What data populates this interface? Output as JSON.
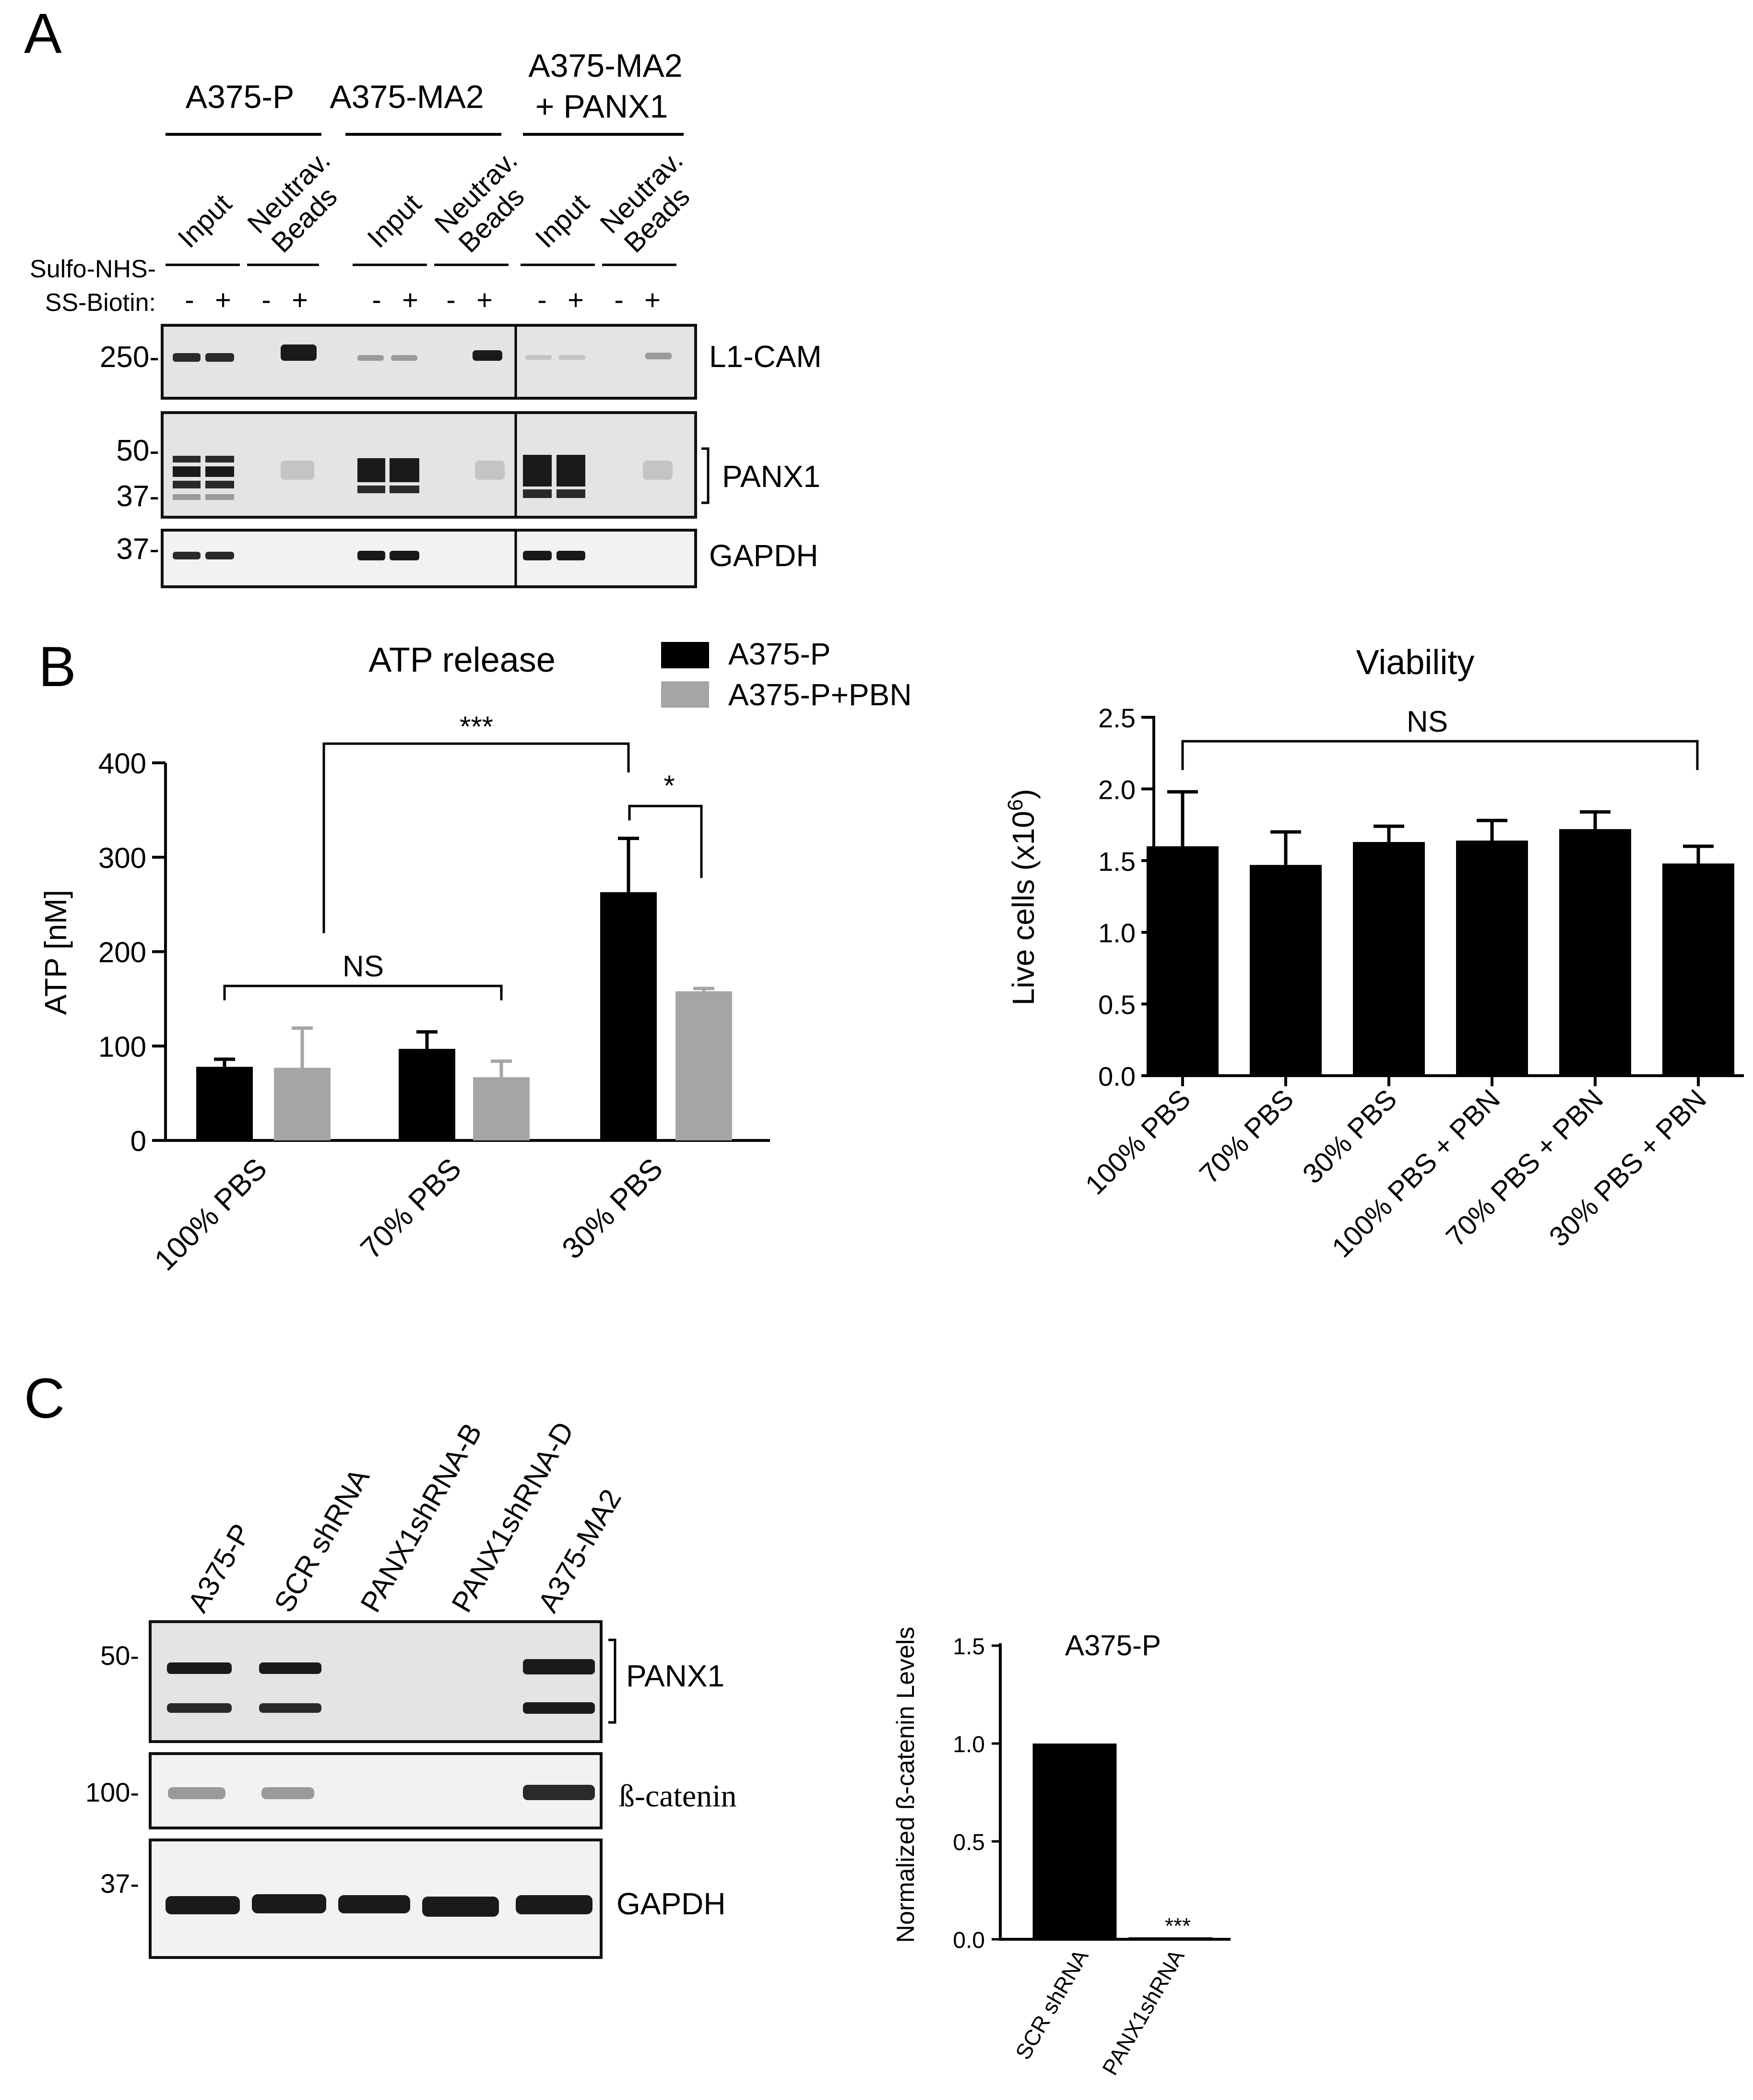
{
  "panel_letters": [
    "A",
    "B",
    "C"
  ],
  "panelA": {
    "groups": [
      "A375-P",
      "A375-MA2",
      "A375-MA2",
      "+ PANX1"
    ],
    "lane_headers": [
      "Input",
      "Neutrav.",
      "Beads"
    ],
    "treatment_label": [
      "Sulfo-NHS-",
      "SS-Biotin:"
    ],
    "signs": [
      "-",
      "+"
    ],
    "markers": [
      "250-",
      "50-",
      "37-",
      "37-"
    ],
    "blots": [
      "L1-CAM",
      "PANX1",
      "GAPDH"
    ]
  },
  "panelB": {
    "legend": [
      "A375-P",
      "A375-P+PBN"
    ],
    "legend_colors": [
      "#000000",
      "#a5a5a5"
    ],
    "atp_sig": [
      "***",
      "*",
      "NS"
    ],
    "viab_sig": "NS",
    "viab_ylabel_prefix": "Live cells (x10",
    "viab_ylabel_exp": "6",
    "viab_ylabel_suffix": ")"
  },
  "panelC": {
    "lanes": [
      "A375-P",
      "SCR shRNA",
      "PANX1shRNA-B",
      "PANX1shRNA-D",
      "A375-MA2"
    ],
    "markers": [
      "50-",
      "100-",
      "37-"
    ],
    "blots": [
      "PANX1",
      "ß-catenin",
      "GAPDH"
    ],
    "bar_sig": "***"
  },
  "chart_data": [
    {
      "type": "bar",
      "title": "ATP release",
      "xlabel": "",
      "ylabel": "ATP [nM]",
      "categories": [
        "100% PBS",
        "70% PBS",
        "30% PBS"
      ],
      "series": [
        {
          "name": "A375-P",
          "values": [
            78,
            97,
            263
          ],
          "errors": [
            8,
            18,
            57
          ]
        },
        {
          "name": "A375-P+PBN",
          "values": [
            77,
            67,
            158
          ],
          "errors": [
            42,
            17,
            3
          ]
        }
      ],
      "ylim": [
        0,
        400
      ],
      "yticks": [
        "0",
        "100",
        "200",
        "300",
        "400"
      ],
      "grid": false
    },
    {
      "type": "bar",
      "title": "Viability",
      "xlabel": "",
      "ylabel": "Live cells (x10^6)",
      "categories": [
        "100% PBS",
        "70% PBS",
        "30% PBS",
        "100% PBS + PBN",
        "70% PBS + PBN",
        "30% PBS + PBN"
      ],
      "values": [
        1.6,
        1.47,
        1.63,
        1.64,
        1.72,
        1.48
      ],
      "errors": [
        0.38,
        0.23,
        0.11,
        0.14,
        0.12,
        0.12
      ],
      "ylim": [
        0,
        2.5
      ],
      "yticks": [
        "0.0",
        "0.5",
        "1.0",
        "1.5",
        "2.0",
        "2.5"
      ],
      "grid": false
    },
    {
      "type": "bar",
      "title": "A375-P",
      "xlabel": "",
      "ylabel": "Normalized ß-catenin Levels",
      "categories": [
        "SCR shRNA",
        "PANX1shRNA"
      ],
      "values": [
        1.0,
        0.01
      ],
      "ylim": [
        0,
        1.5
      ],
      "yticks": [
        "0.0",
        "0.5",
        "1.0",
        "1.5"
      ],
      "grid": false
    }
  ]
}
